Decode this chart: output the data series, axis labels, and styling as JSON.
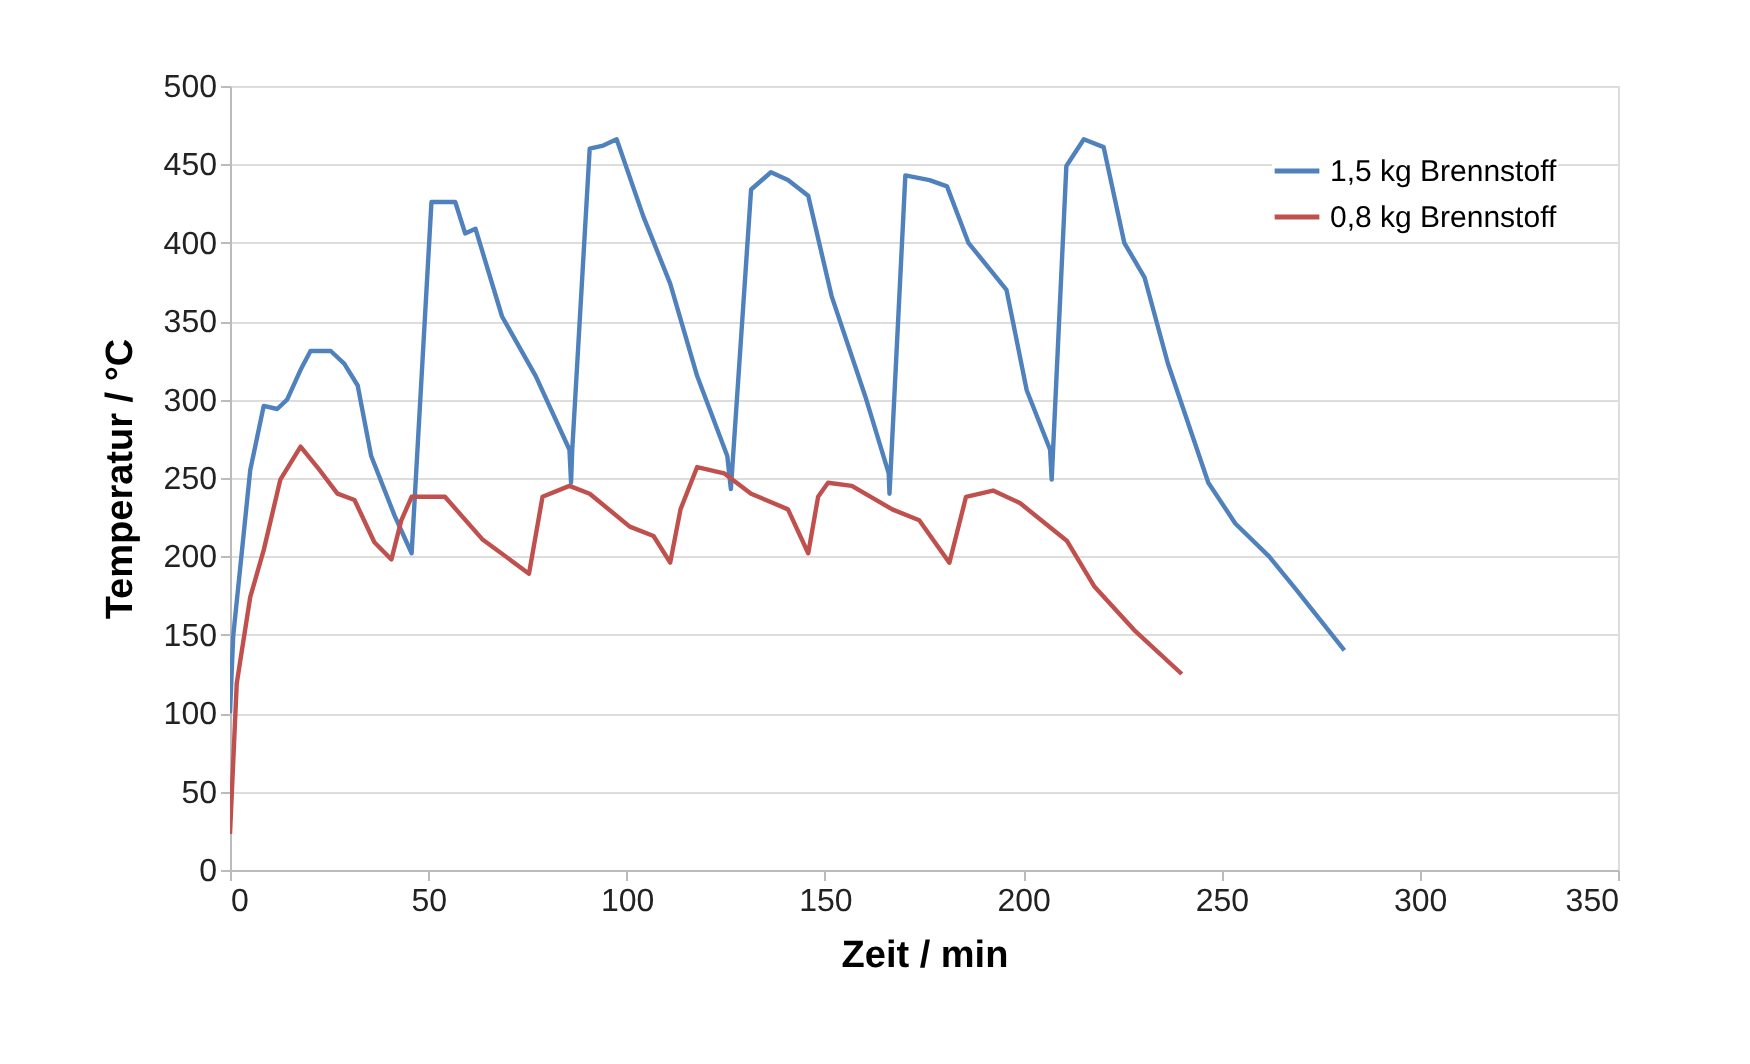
{
  "chart_data": {
    "type": "line",
    "xlabel": "Zeit / min",
    "ylabel": "Temperatur / °C",
    "xlim": [
      0,
      350
    ],
    "xticks": [
      0,
      50,
      100,
      150,
      200,
      250,
      300,
      350
    ],
    "ylim": [
      0,
      500
    ],
    "yticks": [
      0,
      50,
      100,
      150,
      200,
      250,
      300,
      350,
      400,
      450,
      500
    ],
    "grid": "y",
    "legend": "top right",
    "marker": "none",
    "line_style": "solid",
    "series": [
      {
        "name": "1,5 kg Brennstoff",
        "color": "#4f81bd",
        "x": [
          0,
          0.8,
          5.1,
          8.5,
          11.9,
          14.4,
          17.8,
          20.3,
          25.4,
          28.8,
          32.2,
          35.6,
          41.5,
          45.8,
          46.6,
          50.8,
          56.8,
          59.3,
          61.9,
          68.6,
          77.1,
          85.6,
          86.0,
          86.3,
          90.7,
          94.1,
          97.5,
          104.2,
          111,
          117.8,
          125.4,
          126.3,
          131.4,
          136.4,
          140.7,
          145.8,
          151.7,
          160.2,
          166.1,
          166.3,
          170.3,
          176.4,
          180.8,
          186.2,
          195.8,
          200.9,
          206.8,
          207.2,
          210.9,
          215.3,
          220.3,
          225.5,
          230.6,
          236.5,
          246.7,
          253.5,
          262,
          268.8,
          281
        ],
        "values": [
          100,
          149,
          255,
          296,
          294,
          300,
          319,
          331,
          331,
          323,
          309,
          264,
          226,
          202,
          238,
          426,
          426,
          406,
          409,
          353,
          315,
          268,
          247,
          268,
          460,
          462,
          466,
          417,
          374,
          315,
          264,
          243,
          434,
          445,
          440,
          430,
          366,
          302,
          253,
          240,
          443,
          440,
          436,
          400,
          370,
          306,
          268,
          249,
          449,
          466,
          461,
          400,
          378,
          323,
          247,
          221,
          200,
          179,
          140
        ]
      },
      {
        "name": "0,8 kg Brennstoff",
        "color": "#c0504d",
        "x": [
          0,
          1.7,
          5.1,
          8.5,
          12.7,
          17.8,
          22,
          27.1,
          31.4,
          36.4,
          40.7,
          43.2,
          45.8,
          54.2,
          63.6,
          75.4,
          78.8,
          85.6,
          90.7,
          100.8,
          106.8,
          111,
          113.6,
          117.8,
          124.6,
          131.4,
          140.7,
          145.8,
          148.3,
          150.8,
          156.8,
          167,
          173.8,
          181.4,
          185.6,
          192.4,
          199.2,
          211,
          217.9,
          228,
          240
        ],
        "values": [
          23,
          119,
          174,
          204,
          249,
          270,
          257,
          240,
          236,
          209,
          198,
          223,
          238,
          238,
          211,
          189,
          238,
          245,
          240,
          219,
          213,
          196,
          230,
          257,
          253,
          240,
          230,
          202,
          238,
          247,
          245,
          230,
          223,
          196,
          238,
          242,
          234,
          210,
          181,
          153,
          125
        ]
      }
    ]
  }
}
